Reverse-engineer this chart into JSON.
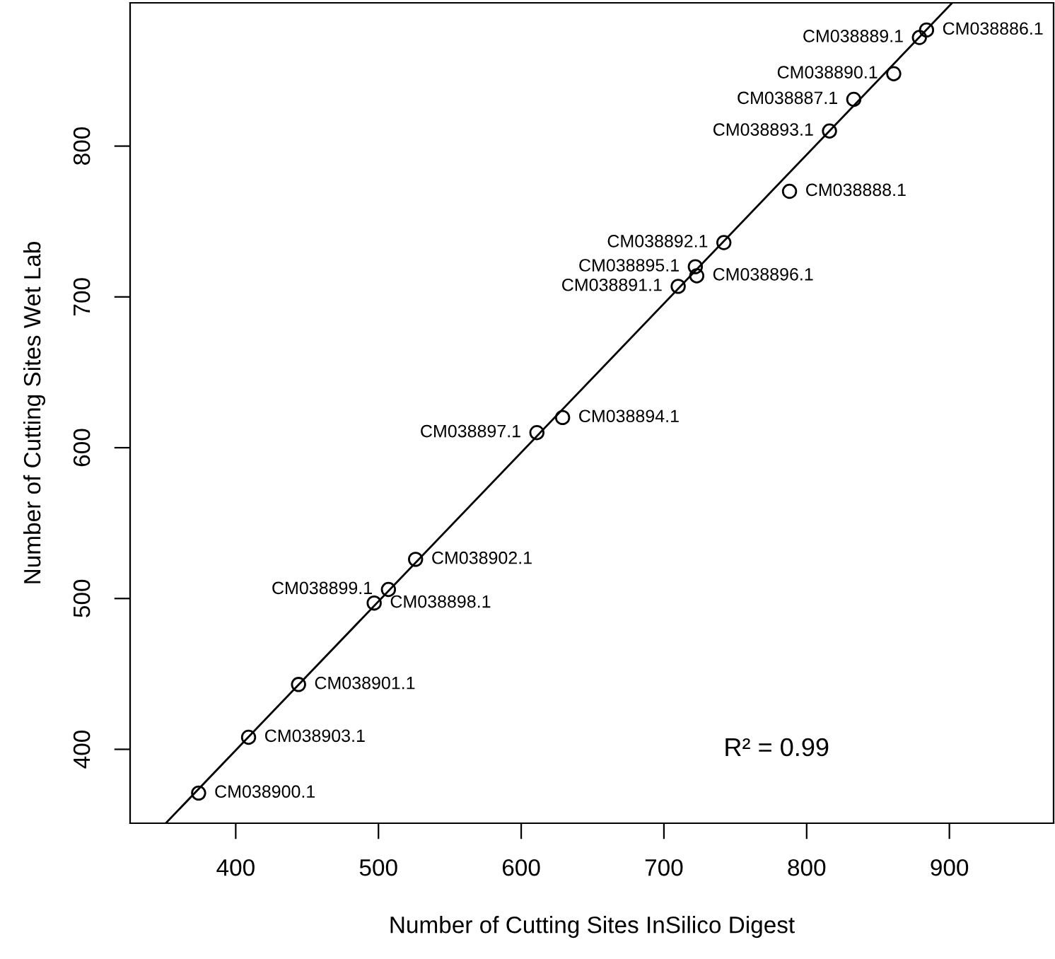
{
  "chart_data": {
    "type": "scatter",
    "xlabel": "Number of Cutting Sites InSilico Digest",
    "ylabel": "Number of Cutting Sites Wet Lab",
    "xlim": [
      326,
      973
    ],
    "ylim": [
      351,
      895
    ],
    "xticks": [
      400,
      500,
      600,
      700,
      800,
      900
    ],
    "yticks": [
      400,
      500,
      600,
      700,
      800
    ],
    "grid": false,
    "legend": false,
    "marker": "circle",
    "series": [
      {
        "type": "scatter",
        "color": "#000000",
        "x": [
          374,
          409,
          444,
          497,
          507,
          526,
          611,
          629,
          710,
          723,
          722,
          742,
          788,
          816,
          833,
          861,
          879,
          884
        ],
        "values": [
          371,
          408,
          443,
          497,
          506,
          526,
          610,
          620,
          707,
          714,
          720,
          736,
          770,
          810,
          831,
          848,
          872,
          877
        ]
      },
      {
        "type": "line",
        "color": "#000000",
        "marker": "none",
        "line_style": "solid",
        "x": [
          351,
          902
        ],
        "values": [
          351,
          895
        ]
      }
    ],
    "annotations": [
      {
        "text": "CM038900.1",
        "x": 374,
        "y": 371
      },
      {
        "text": "CM038903.1",
        "x": 409,
        "y": 408
      },
      {
        "text": "CM038901.1",
        "x": 444,
        "y": 443
      },
      {
        "text": "CM038898.1",
        "x": 497,
        "y": 497
      },
      {
        "text": "CM038899.1",
        "x": 507,
        "y": 506
      },
      {
        "text": "CM038902.1",
        "x": 526,
        "y": 526
      },
      {
        "text": "CM038897.1",
        "x": 611,
        "y": 610
      },
      {
        "text": "CM038894.1",
        "x": 629,
        "y": 620
      },
      {
        "text": "CM038891.1",
        "x": 710,
        "y": 707
      },
      {
        "text": "CM038896.1",
        "x": 723,
        "y": 714
      },
      {
        "text": "CM038895.1",
        "x": 722,
        "y": 720
      },
      {
        "text": "CM038892.1",
        "x": 742,
        "y": 736
      },
      {
        "text": "CM038888.1",
        "x": 788,
        "y": 770
      },
      {
        "text": "CM038893.1",
        "x": 816,
        "y": 810
      },
      {
        "text": "CM038887.1",
        "x": 833,
        "y": 831
      },
      {
        "text": "CM038890.1",
        "x": 861,
        "y": 848
      },
      {
        "text": "CM038889.1",
        "x": 879,
        "y": 872
      },
      {
        "text": "CM038886.1",
        "x": 884,
        "y": 877
      },
      "R² = 0.99"
    ]
  }
}
